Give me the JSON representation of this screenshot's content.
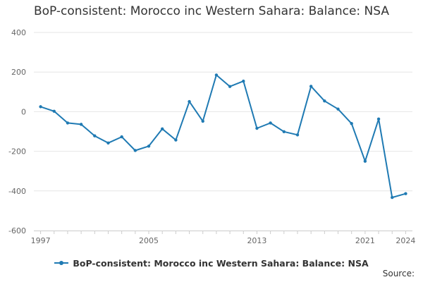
{
  "chart_data": {
    "type": "line",
    "title": "BoP-consistent: Morocco inc Western Sahara: Balance: NSA",
    "xlabel": "",
    "ylabel": "",
    "ylim": [
      -600,
      400
    ],
    "yticks": [
      400,
      200,
      0,
      -200,
      -400,
      -600
    ],
    "xlim": [
      1996.5,
      2024.5
    ],
    "xticks": [
      1997,
      2005,
      2013,
      2021,
      2024
    ],
    "grid": true,
    "legend_position": "bottom",
    "color": "#1f7ab3",
    "series": [
      {
        "name": "BoP-consistent: Morocco inc Western Sahara: Balance: NSA",
        "x": [
          1997,
          1998,
          1999,
          2000,
          2001,
          2002,
          2003,
          2004,
          2005,
          2006,
          2007,
          2008,
          2009,
          2010,
          2011,
          2012,
          2013,
          2014,
          2015,
          2016,
          2017,
          2018,
          2019,
          2020,
          2021,
          2022,
          2023,
          2024
        ],
        "values": [
          25,
          2,
          -57,
          -64,
          -122,
          -158,
          -127,
          -196,
          -174,
          -87,
          -143,
          51,
          -48,
          185,
          127,
          154,
          -84,
          -57,
          -101,
          -117,
          128,
          54,
          13,
          -60,
          -250,
          -37,
          -433,
          -414
        ]
      }
    ]
  },
  "source_label": "Source:"
}
